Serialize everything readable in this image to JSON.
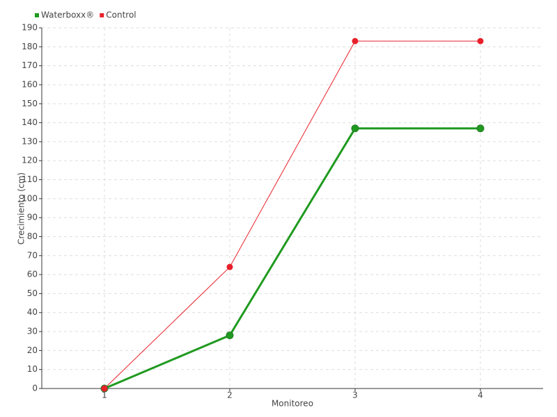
{
  "chart_data": {
    "type": "line",
    "x_label": "Monitoreo",
    "y_label": "Crecimiento (cm)",
    "categories": [
      "1",
      "2",
      "3",
      "4"
    ],
    "series": [
      {
        "name": "Waterboxx®",
        "color": "#1f9a1f",
        "values": [
          0,
          28,
          137,
          137
        ]
      },
      {
        "name": "Control",
        "color": "#e8202a",
        "values": [
          0,
          64,
          183,
          183
        ]
      }
    ],
    "ylim": [
      0,
      190
    ],
    "yticks": [
      0,
      10,
      20,
      30,
      40,
      50,
      60,
      70,
      80,
      90,
      100,
      110,
      120,
      130,
      140,
      150,
      160,
      170,
      180,
      190
    ],
    "grid": true,
    "legend": "top-left"
  }
}
